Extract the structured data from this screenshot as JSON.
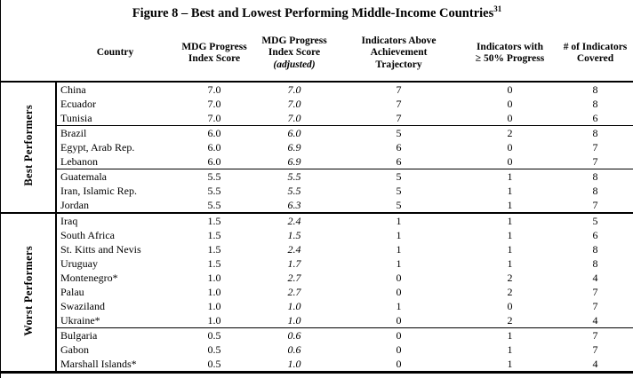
{
  "figure": {
    "title": "Figure 8 – Best and Lowest Performing Middle-Income Countries",
    "title_superscript": "31"
  },
  "colors": {
    "text": "#000000",
    "background": "#ffffff",
    "border": "#000000"
  },
  "table": {
    "columns": [
      {
        "id": "country",
        "lines": [
          "Country"
        ]
      },
      {
        "id": "mdg_progress_index_score",
        "lines": [
          "MDG Progress",
          "Index Score"
        ]
      },
      {
        "id": "mdg_progress_index_score_adjusted",
        "lines": [
          "MDG Progress",
          "Index Score",
          "(adjusted)"
        ],
        "italic_line_index": 2
      },
      {
        "id": "indicators_above_achievement_trajectory",
        "lines": [
          "Indicators Above",
          "Achievement",
          "Trajectory"
        ]
      },
      {
        "id": "indicators_with_50_progress",
        "lines": [
          "Indicators with",
          "≥ 50% Progress"
        ]
      },
      {
        "id": "num_indicators_covered",
        "lines": [
          "# of Indicators",
          "Covered"
        ]
      }
    ],
    "groups": [
      {
        "label": "Best Performers",
        "rows": [
          {
            "country": "China",
            "score": "7.0",
            "adjusted": "7.0",
            "above": "7",
            "fifty": "0",
            "covered": "8",
            "rule_below": false
          },
          {
            "country": "Ecuador",
            "score": "7.0",
            "adjusted": "7.0",
            "above": "7",
            "fifty": "0",
            "covered": "8",
            "rule_below": false
          },
          {
            "country": "Tunisia",
            "score": "7.0",
            "adjusted": "7.0",
            "above": "7",
            "fifty": "0",
            "covered": "6",
            "rule_below": true
          },
          {
            "country": "Brazil",
            "score": "6.0",
            "adjusted": "6.0",
            "above": "5",
            "fifty": "2",
            "covered": "8",
            "rule_below": false
          },
          {
            "country": "Egypt, Arab Rep.",
            "score": "6.0",
            "adjusted": "6.9",
            "above": "6",
            "fifty": "0",
            "covered": "7",
            "rule_below": false
          },
          {
            "country": "Lebanon",
            "score": "6.0",
            "adjusted": "6.9",
            "above": "6",
            "fifty": "0",
            "covered": "7",
            "rule_below": true
          },
          {
            "country": "Guatemala",
            "score": "5.5",
            "adjusted": "5.5",
            "above": "5",
            "fifty": "1",
            "covered": "8",
            "rule_below": false
          },
          {
            "country": "Iran, Islamic Rep.",
            "score": "5.5",
            "adjusted": "5.5",
            "above": "5",
            "fifty": "1",
            "covered": "8",
            "rule_below": false
          },
          {
            "country": "Jordan",
            "score": "5.5",
            "adjusted": "6.3",
            "above": "5",
            "fifty": "1",
            "covered": "7",
            "rule_below": false
          }
        ]
      },
      {
        "label": "Worst Performers",
        "rows": [
          {
            "country": "Iraq",
            "score": "1.5",
            "adjusted": "2.4",
            "above": "1",
            "fifty": "1",
            "covered": "5",
            "rule_below": false
          },
          {
            "country": "South Africa",
            "score": "1.5",
            "adjusted": "1.5",
            "above": "1",
            "fifty": "1",
            "covered": "6",
            "rule_below": false
          },
          {
            "country": "St. Kitts and Nevis",
            "score": "1.5",
            "adjusted": "2.4",
            "above": "1",
            "fifty": "1",
            "covered": "8",
            "rule_below": false
          },
          {
            "country": "Uruguay",
            "score": "1.5",
            "adjusted": "1.7",
            "above": "1",
            "fifty": "1",
            "covered": "8",
            "rule_below": false
          },
          {
            "country": "Montenegro*",
            "score": "1.0",
            "adjusted": "2.7",
            "above": "0",
            "fifty": "2",
            "covered": "4",
            "rule_below": false
          },
          {
            "country": "Palau",
            "score": "1.0",
            "adjusted": "2.7",
            "above": "0",
            "fifty": "2",
            "covered": "7",
            "rule_below": false
          },
          {
            "country": "Swaziland",
            "score": "1.0",
            "adjusted": "1.0",
            "above": "1",
            "fifty": "0",
            "covered": "7",
            "rule_below": false
          },
          {
            "country": "Ukraine*",
            "score": "1.0",
            "adjusted": "1.0",
            "above": "0",
            "fifty": "2",
            "covered": "4",
            "rule_below": true
          },
          {
            "country": "Bulgaria",
            "score": "0.5",
            "adjusted": "0.6",
            "above": "0",
            "fifty": "1",
            "covered": "7",
            "rule_below": false
          },
          {
            "country": "Gabon",
            "score": "0.5",
            "adjusted": "0.6",
            "above": "0",
            "fifty": "1",
            "covered": "7",
            "rule_below": false
          },
          {
            "country": "Marshall Islands*",
            "score": "0.5",
            "adjusted": "1.0",
            "above": "0",
            "fifty": "1",
            "covered": "4",
            "rule_below": false
          }
        ]
      }
    ]
  }
}
